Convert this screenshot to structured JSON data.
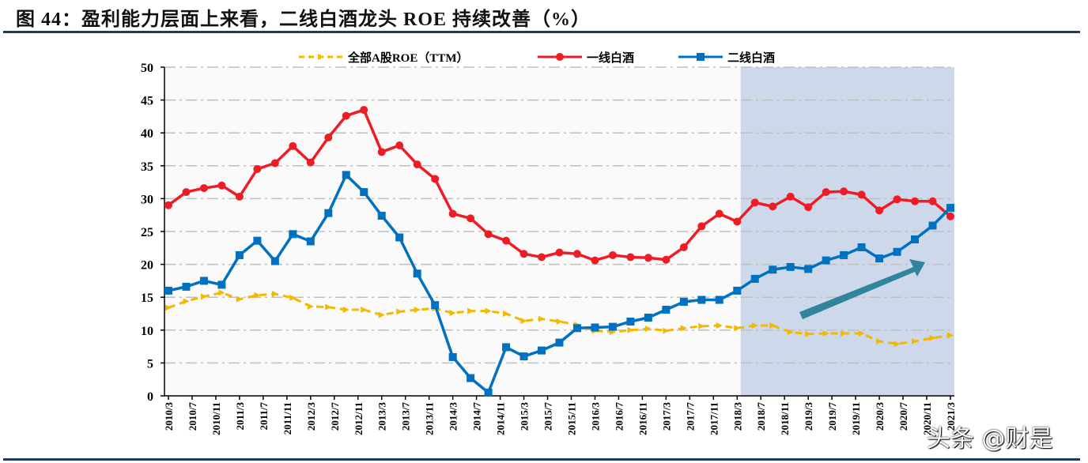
{
  "title": "图 44：盈利能力层面上来看，二线白酒龙头 ROE 持续改善（%）",
  "watermark": "头条 @财是",
  "chart_data": {
    "type": "line",
    "title": "图 44：盈利能力层面上来看，二线白酒龙头 ROE 持续改善（%）",
    "xlabel": "",
    "ylabel": "",
    "ylim": [
      0,
      50
    ],
    "yticks": [
      0,
      5,
      10,
      15,
      20,
      25,
      30,
      35,
      40,
      45,
      50
    ],
    "grid": true,
    "legend_position": "top",
    "x_range": [
      "2010/3",
      "2021/3"
    ],
    "xtick_labels": [
      "2010/3",
      "2010/7",
      "2010/11",
      "2011/3",
      "2011/7",
      "2011/11",
      "2012/3",
      "2012/7",
      "2012/11",
      "2013/3",
      "2013/7",
      "2013/11",
      "2014/3",
      "2014/7",
      "2014/11",
      "2015/3",
      "2015/7",
      "2015/11",
      "2016/3",
      "2016/7",
      "2016/11",
      "2017/3",
      "2017/7",
      "2017/11",
      "2018/3",
      "2018/7",
      "2018/11",
      "2019/3",
      "2019/7",
      "2019/11",
      "2020/3",
      "2020/7",
      "2020/11",
      "2021/3"
    ],
    "x": [
      "2010/3",
      "2010/6",
      "2010/9",
      "2010/12",
      "2011/3",
      "2011/6",
      "2011/9",
      "2011/12",
      "2012/3",
      "2012/6",
      "2012/9",
      "2012/12",
      "2013/3",
      "2013/6",
      "2013/9",
      "2013/12",
      "2014/3",
      "2014/6",
      "2014/9",
      "2014/12",
      "2015/3",
      "2015/6",
      "2015/9",
      "2015/12",
      "2016/3",
      "2016/6",
      "2016/9",
      "2016/12",
      "2017/3",
      "2017/6",
      "2017/9",
      "2017/12",
      "2018/3",
      "2018/6",
      "2018/9",
      "2018/12",
      "2019/3",
      "2019/6",
      "2019/9",
      "2019/12",
      "2020/3",
      "2020/6",
      "2020/9",
      "2020/12",
      "2021/3"
    ],
    "highlight_range": [
      "2018/4",
      "2021/3"
    ],
    "annotation": "upward-arrow",
    "series": [
      {
        "name": "全部A股ROE（TTM）",
        "color": "#f5b800",
        "style": "dashed",
        "marker": "arrow",
        "values": [
          13.4,
          14.4,
          15.1,
          15.7,
          14.7,
          15.3,
          15.5,
          14.9,
          13.6,
          13.5,
          13.1,
          13.1,
          12.3,
          12.8,
          13.1,
          13.3,
          12.6,
          12.9,
          12.9,
          12.5,
          11.4,
          11.7,
          11.3,
          10.8,
          9.9,
          9.7,
          10.0,
          10.2,
          9.9,
          10.3,
          10.6,
          10.7,
          10.3,
          10.7,
          10.7,
          9.7,
          9.4,
          9.5,
          9.5,
          9.5,
          8.3,
          7.9,
          8.3,
          8.8,
          9.2
        ]
      },
      {
        "name": "一线白酒",
        "color": "#ee1c25",
        "style": "solid",
        "marker": "circle",
        "values": [
          29,
          31,
          31.6,
          32,
          30.3,
          34.5,
          35.4,
          38,
          35.5,
          39.3,
          42.6,
          43.5,
          37.1,
          38.1,
          35.2,
          33,
          27.7,
          27,
          24.6,
          23.6,
          21.6,
          21.1,
          21.8,
          21.6,
          20.6,
          21.4,
          21.1,
          21,
          20.7,
          22.6,
          25.8,
          27.7,
          26.5,
          29.4,
          28.8,
          30.3,
          28.7,
          31,
          31.1,
          30.6,
          28.2,
          29.9,
          29.6,
          29.6,
          27.3
        ]
      },
      {
        "name": "二线白酒",
        "color": "#0070c0",
        "style": "solid",
        "marker": "square",
        "values": [
          16,
          16.6,
          17.5,
          16.9,
          21.4,
          23.6,
          20.5,
          24.6,
          23.5,
          27.8,
          33.6,
          31,
          27.4,
          24.1,
          18.6,
          13.8,
          5.9,
          2.7,
          0.5,
          7.4,
          6,
          6.9,
          8.1,
          10.3,
          10.4,
          10.5,
          11.3,
          11.9,
          13.1,
          14.3,
          14.6,
          14.6,
          16,
          17.8,
          19.2,
          19.6,
          19.3,
          20.6,
          21.4,
          22.6,
          20.9,
          21.9,
          23.8,
          25.9,
          28.6
        ]
      }
    ],
    "colors": {
      "highlight": "#cdd9ea",
      "arrow": "#31849b",
      "grid": "#bfbfbf"
    }
  }
}
